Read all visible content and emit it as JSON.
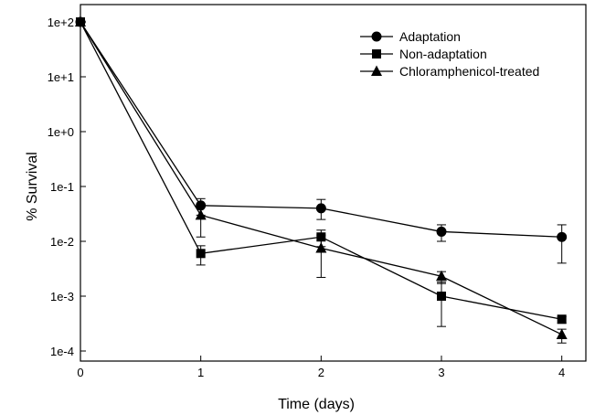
{
  "chart_data": {
    "type": "line",
    "title": "",
    "xlabel": "Time (days)",
    "ylabel": "% Survival",
    "yscale": "log",
    "xlim": [
      0,
      4.2
    ],
    "ylim": [
      0.0001,
      100
    ],
    "x_ticks": [
      0,
      1,
      2,
      3,
      4
    ],
    "x_tick_labels": [
      "0",
      "1",
      "2",
      "3",
      "4"
    ],
    "y_ticks": [
      0.0001,
      0.001,
      0.01,
      0.1,
      1,
      10,
      100
    ],
    "y_tick_labels": [
      "1e-4",
      "1e-3",
      "1e-2",
      "1e-1",
      "1e+0",
      "1e+1",
      "1e+2"
    ],
    "grid": false,
    "legend_position": "top-right",
    "series": [
      {
        "name": "Adaptation",
        "marker": "circle",
        "color": "#000000",
        "x": [
          0,
          1,
          2,
          3,
          4
        ],
        "y": [
          100,
          0.045,
          0.04,
          0.015,
          0.012
        ],
        "err_low": [
          100,
          0.03,
          0.025,
          0.01,
          0.004
        ],
        "err_high": [
          100,
          0.06,
          0.058,
          0.02,
          0.02
        ]
      },
      {
        "name": "Non-adaptation",
        "marker": "square",
        "color": "#000000",
        "x": [
          0,
          1,
          2,
          3,
          4
        ],
        "y": [
          100,
          0.006,
          0.012,
          0.001,
          0.00038
        ],
        "err_low": [
          100,
          0.0037,
          0.008,
          0.00028,
          0.00032
        ],
        "err_high": [
          100,
          0.0083,
          0.016,
          0.0018,
          0.00042
        ]
      },
      {
        "name": "Chloramphenicol-treated",
        "marker": "triangle",
        "color": "#000000",
        "x": [
          0,
          1,
          2,
          3,
          4
        ],
        "y": [
          100,
          0.03,
          0.0075,
          0.0023,
          0.0002
        ],
        "err_low": [
          100,
          0.012,
          0.0022,
          0.0017,
          0.00014
        ],
        "err_high": [
          100,
          0.045,
          0.013,
          0.0028,
          0.00025
        ]
      }
    ]
  }
}
